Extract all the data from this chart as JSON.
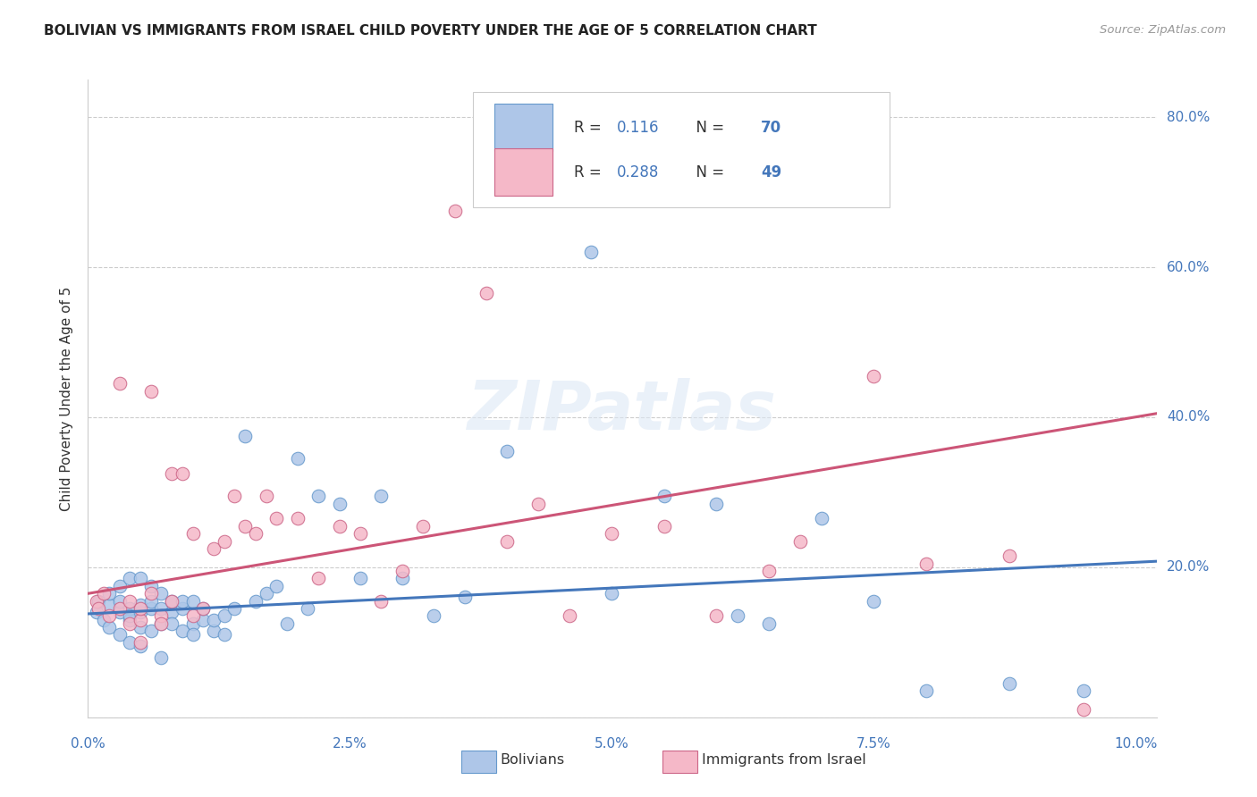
{
  "title": "BOLIVIAN VS IMMIGRANTS FROM ISRAEL CHILD POVERTY UNDER THE AGE OF 5 CORRELATION CHART",
  "source": "Source: ZipAtlas.com",
  "ylabel": "Child Poverty Under the Age of 5",
  "yticks": [
    0.0,
    0.2,
    0.4,
    0.6,
    0.8
  ],
  "ytick_labels": [
    "",
    "20.0%",
    "40.0%",
    "60.0%",
    "80.0%"
  ],
  "xtick_labels": [
    "0.0%",
    "2.5%",
    "5.0%",
    "7.5%",
    "10.0%"
  ],
  "xticks": [
    0.0,
    0.025,
    0.05,
    0.075,
    0.1
  ],
  "xlim": [
    0.0,
    0.102
  ],
  "ylim": [
    0.0,
    0.85
  ],
  "series1_label": "Bolivians",
  "series1_R": "0.116",
  "series1_N": "70",
  "series1_color": "#aec6e8",
  "series1_edge_color": "#6699cc",
  "series1_line_color": "#4477bb",
  "series2_label": "Immigrants from Israel",
  "series2_R": "0.288",
  "series2_N": "49",
  "series2_color": "#f5b8c8",
  "series2_edge_color": "#cc6688",
  "series2_line_color": "#cc5577",
  "text_color_blue": "#4477bb",
  "text_color_dark": "#333333",
  "text_color_red": "#cc4422",
  "watermark": "ZIPatlas",
  "background_color": "#ffffff",
  "grid_color": "#cccccc",
  "scatter1_x": [
    0.0008,
    0.001,
    0.0015,
    0.002,
    0.002,
    0.002,
    0.003,
    0.003,
    0.003,
    0.003,
    0.004,
    0.004,
    0.004,
    0.004,
    0.004,
    0.005,
    0.005,
    0.005,
    0.005,
    0.005,
    0.006,
    0.006,
    0.006,
    0.006,
    0.007,
    0.007,
    0.007,
    0.007,
    0.008,
    0.008,
    0.008,
    0.009,
    0.009,
    0.009,
    0.01,
    0.01,
    0.01,
    0.011,
    0.011,
    0.012,
    0.012,
    0.013,
    0.013,
    0.014,
    0.015,
    0.016,
    0.017,
    0.018,
    0.019,
    0.02,
    0.021,
    0.022,
    0.024,
    0.026,
    0.028,
    0.03,
    0.033,
    0.036,
    0.04,
    0.048,
    0.05,
    0.055,
    0.06,
    0.062,
    0.065,
    0.07,
    0.075,
    0.08,
    0.088,
    0.095
  ],
  "scatter1_y": [
    0.14,
    0.155,
    0.13,
    0.15,
    0.12,
    0.165,
    0.14,
    0.155,
    0.11,
    0.175,
    0.13,
    0.145,
    0.1,
    0.185,
    0.135,
    0.14,
    0.15,
    0.095,
    0.185,
    0.12,
    0.145,
    0.155,
    0.115,
    0.175,
    0.145,
    0.125,
    0.165,
    0.08,
    0.14,
    0.155,
    0.125,
    0.145,
    0.115,
    0.155,
    0.125,
    0.11,
    0.155,
    0.13,
    0.145,
    0.115,
    0.13,
    0.135,
    0.11,
    0.145,
    0.375,
    0.155,
    0.165,
    0.175,
    0.125,
    0.345,
    0.145,
    0.295,
    0.285,
    0.185,
    0.295,
    0.185,
    0.135,
    0.16,
    0.355,
    0.62,
    0.165,
    0.295,
    0.285,
    0.135,
    0.125,
    0.265,
    0.155,
    0.035,
    0.045,
    0.035
  ],
  "scatter2_x": [
    0.0008,
    0.001,
    0.0015,
    0.002,
    0.003,
    0.003,
    0.004,
    0.004,
    0.005,
    0.005,
    0.005,
    0.006,
    0.006,
    0.007,
    0.007,
    0.008,
    0.008,
    0.009,
    0.01,
    0.01,
    0.011,
    0.012,
    0.013,
    0.014,
    0.015,
    0.016,
    0.017,
    0.018,
    0.02,
    0.022,
    0.024,
    0.026,
    0.028,
    0.03,
    0.032,
    0.035,
    0.038,
    0.04,
    0.043,
    0.046,
    0.05,
    0.055,
    0.06,
    0.065,
    0.068,
    0.075,
    0.08,
    0.088,
    0.095
  ],
  "scatter2_y": [
    0.155,
    0.145,
    0.165,
    0.135,
    0.145,
    0.445,
    0.125,
    0.155,
    0.13,
    0.145,
    0.1,
    0.435,
    0.165,
    0.135,
    0.125,
    0.325,
    0.155,
    0.325,
    0.135,
    0.245,
    0.145,
    0.225,
    0.235,
    0.295,
    0.255,
    0.245,
    0.295,
    0.265,
    0.265,
    0.185,
    0.255,
    0.245,
    0.155,
    0.195,
    0.255,
    0.675,
    0.565,
    0.235,
    0.285,
    0.135,
    0.245,
    0.255,
    0.135,
    0.195,
    0.235,
    0.455,
    0.205,
    0.215,
    0.01
  ],
  "trendline1_x": [
    0.0,
    0.102
  ],
  "trendline1_y": [
    0.138,
    0.208
  ],
  "trendline2_x": [
    0.0,
    0.102
  ],
  "trendline2_y": [
    0.165,
    0.405
  ]
}
